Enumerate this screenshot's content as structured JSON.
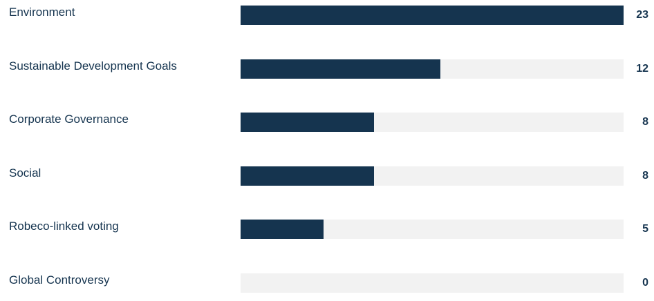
{
  "chart_data": {
    "type": "bar",
    "orientation": "horizontal",
    "categories": [
      "Environment",
      "Sustainable Development Goals",
      "Corporate Governance",
      "Social",
      "Robeco-linked voting",
      "Global Controversy"
    ],
    "values": [
      23,
      12,
      8,
      8,
      5,
      0
    ],
    "xlim": [
      0,
      23
    ],
    "grid": false,
    "legend": "none",
    "colors": {
      "bar": "#15344f",
      "track": "#f2f2f2",
      "text": "#15344f"
    }
  }
}
